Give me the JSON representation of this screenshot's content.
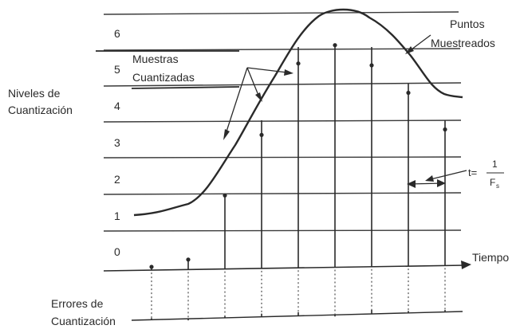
{
  "title": "",
  "y_axis": {
    "label_line1": "Niveles de",
    "label_line2": "Cuantización",
    "levels": [
      "0",
      "1",
      "2",
      "3",
      "4",
      "5",
      "6"
    ]
  },
  "x_axis": {
    "label": "Tiempo"
  },
  "annotations": {
    "quantized_line1": "Muestras",
    "quantized_line2": "Cuantizadas",
    "sampled_line1": "Puntos",
    "sampled_line2": "Muestreados",
    "period_prefix": "t=",
    "period_numerator": "1",
    "period_denominator": "F",
    "period_subscript": "s"
  },
  "errors": {
    "label_line1": "Errores de",
    "label_line2": "Cuantización"
  },
  "samples": {
    "count": 9,
    "signal_levels": [
      1.0,
      1.2,
      2.95,
      4.6,
      6.55,
      7.05,
      6.5,
      5.75,
      4.75
    ],
    "quantized_levels": [
      1,
      1,
      3,
      5,
      7,
      7,
      7,
      6,
      5
    ]
  }
}
